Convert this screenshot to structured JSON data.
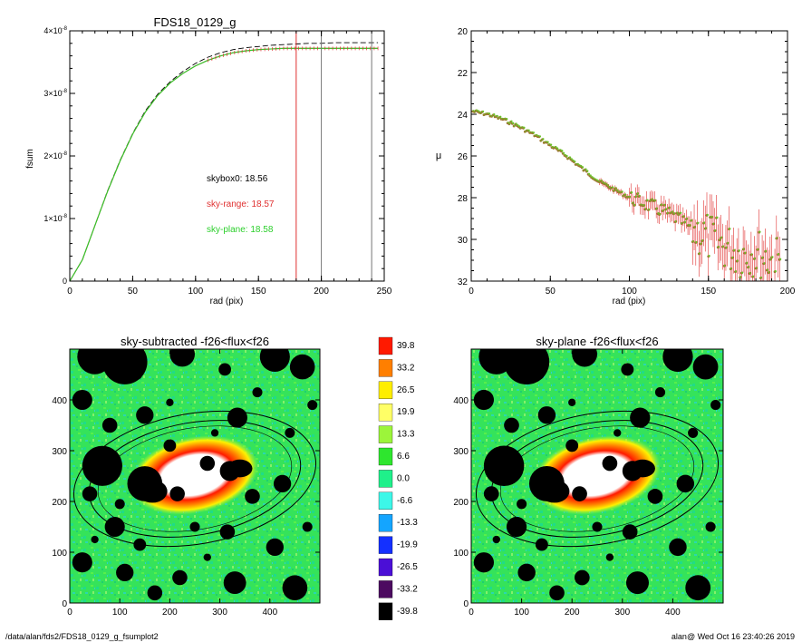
{
  "footer": {
    "left": "/data/alan/fds2/FDS18_0129_g_fsumplot2",
    "right": "alan@  Wed Oct 16 23:40:26 2019"
  },
  "chart_data": [
    {
      "type": "line",
      "title": "FDS18_0129_g",
      "xlabel": "rad (pix)",
      "ylabel": "fsum",
      "xlim": [
        0,
        250
      ],
      "ylim": [
        0,
        4e-08
      ],
      "xticks": [
        "0",
        "50",
        "100",
        "150",
        "200",
        "250"
      ],
      "yticks": [
        {
          "v": 0,
          "mantissa": "0",
          "exp": ""
        },
        {
          "v": 1e-08,
          "mantissa": "1×10",
          "exp": "-8"
        },
        {
          "v": 2e-08,
          "mantissa": "2×10",
          "exp": "-8"
        },
        {
          "v": 3e-08,
          "mantissa": "3×10",
          "exp": "-8"
        },
        {
          "v": 4e-08,
          "mantissa": "4×10",
          "exp": "-8"
        }
      ],
      "series": [
        {
          "style": "dashed",
          "color": "#000000",
          "x": [
            0,
            10,
            20,
            30,
            40,
            50,
            60,
            70,
            80,
            90,
            100,
            110,
            120,
            130,
            140,
            150,
            160,
            170,
            180,
            190,
            200,
            210,
            220,
            230,
            240,
            245
          ],
          "y": [
            0,
            3.4e-09,
            8.9e-09,
            1.44e-08,
            1.93e-08,
            2.36e-08,
            2.72e-08,
            2.99e-08,
            3.19e-08,
            3.35e-08,
            3.48e-08,
            3.58e-08,
            3.65e-08,
            3.7e-08,
            3.73e-08,
            3.75e-08,
            3.77e-08,
            3.78e-08,
            3.79e-08,
            3.8e-08,
            3.8e-08,
            3.81e-08,
            3.81e-08,
            3.81e-08,
            3.81e-08,
            3.81e-08
          ]
        },
        {
          "style": "solid",
          "color": "#e03030",
          "x": [
            0,
            10,
            20,
            30,
            40,
            50,
            60,
            70,
            80,
            90,
            100,
            110,
            120,
            130,
            140,
            150,
            160,
            170,
            180,
            190,
            200,
            210,
            220,
            230,
            240,
            245
          ],
          "y": [
            0,
            3.4e-09,
            8.9e-09,
            1.43e-08,
            1.92e-08,
            2.35e-08,
            2.7e-08,
            2.97e-08,
            3.17e-08,
            3.32e-08,
            3.44e-08,
            3.53e-08,
            3.6e-08,
            3.65e-08,
            3.68e-08,
            3.7e-08,
            3.71e-08,
            3.72e-08,
            3.72e-08,
            3.72e-08,
            3.72e-08,
            3.72e-08,
            3.72e-08,
            3.72e-08,
            3.72e-08,
            3.72e-08
          ]
        },
        {
          "style": "solid",
          "color": "#2ccf2c",
          "x": [
            0,
            10,
            20,
            30,
            40,
            50,
            60,
            70,
            80,
            90,
            100,
            110,
            120,
            130,
            140,
            150,
            160,
            170,
            180,
            190,
            200,
            210,
            220,
            230,
            240,
            245
          ],
          "y": [
            0,
            3.4e-09,
            8.9e-09,
            1.43e-08,
            1.92e-08,
            2.35e-08,
            2.7e-08,
            2.97e-08,
            3.17e-08,
            3.32e-08,
            3.44e-08,
            3.53e-08,
            3.6e-08,
            3.65e-08,
            3.68e-08,
            3.7e-08,
            3.71e-08,
            3.72e-08,
            3.72e-08,
            3.72e-08,
            3.72e-08,
            3.72e-08,
            3.72e-08,
            3.72e-08,
            3.72e-08,
            3.72e-08
          ]
        }
      ],
      "vlines": [
        {
          "x": 180,
          "color": "#e03030"
        },
        {
          "x": 200,
          "color": "#777777"
        },
        {
          "x": 240,
          "color": "#777777"
        }
      ],
      "annotations": [
        {
          "label": "skybox0: 18.56",
          "color": "#000000"
        },
        {
          "label": "sky-range: 18.57",
          "color": "#e03030"
        },
        {
          "label": "sky-plane: 18.58",
          "color": "#2ccf2c"
        }
      ]
    },
    {
      "type": "scatter",
      "title": "",
      "xlabel": "rad (pix)",
      "ylabel": "μ",
      "xlim": [
        0,
        200
      ],
      "ylim": [
        32,
        20
      ],
      "xticks": [
        "0",
        "50",
        "100",
        "150",
        "200"
      ],
      "yticks": [
        "20",
        "22",
        "24",
        "26",
        "28",
        "30",
        "32"
      ],
      "profile": {
        "x": [
          0,
          10,
          20,
          30,
          40,
          50,
          60,
          70,
          80,
          90,
          100,
          110,
          120,
          130,
          140,
          150,
          160,
          170,
          180,
          190,
          200
        ],
        "y": [
          23.85,
          24.0,
          24.25,
          24.6,
          25.0,
          25.5,
          26.0,
          26.6,
          27.2,
          27.6,
          28.0,
          28.3,
          28.6,
          29.0,
          29.5,
          29.9,
          30.3,
          30.7,
          30.6,
          31.0,
          31.1
        ]
      }
    },
    {
      "type": "heatmap",
      "title": "sky-subtracted -f26<flux<f26",
      "xlim": [
        0,
        500
      ],
      "ylim": [
        0,
        500
      ],
      "xticks": [
        "0",
        "100",
        "200",
        "300",
        "400"
      ],
      "yticks": [
        "0",
        "100",
        "200",
        "300",
        "400"
      ]
    },
    {
      "type": "heatmap",
      "title": "sky-plane -f26<flux<f26",
      "xlim": [
        0,
        500
      ],
      "ylim": [
        0,
        500
      ],
      "xticks": [
        "0",
        "100",
        "200",
        "300",
        "400"
      ],
      "yticks": [
        "0",
        "100",
        "200",
        "300",
        "400"
      ]
    }
  ],
  "colorbar": {
    "levels": [
      {
        "label": "39.8",
        "color": "#ff1a00"
      },
      {
        "label": "33.2",
        "color": "#ff7f00"
      },
      {
        "label": "26.5",
        "color": "#ffee00"
      },
      {
        "label": "19.9",
        "color": "#ffff66"
      },
      {
        "label": "13.3",
        "color": "#9cf53a"
      },
      {
        "label": "6.6",
        "color": "#2ee62e"
      },
      {
        "label": "0.0",
        "color": "#1ff08a"
      },
      {
        "label": "-6.6",
        "color": "#3cf7e8"
      },
      {
        "label": "-13.3",
        "color": "#14a5ff"
      },
      {
        "label": "-19.9",
        "color": "#1430ff"
      },
      {
        "label": "-26.5",
        "color": "#4b0fd6"
      },
      {
        "label": "-33.2",
        "color": "#4c0a60"
      },
      {
        "label": "-39.8",
        "color": "#000000"
      }
    ]
  }
}
